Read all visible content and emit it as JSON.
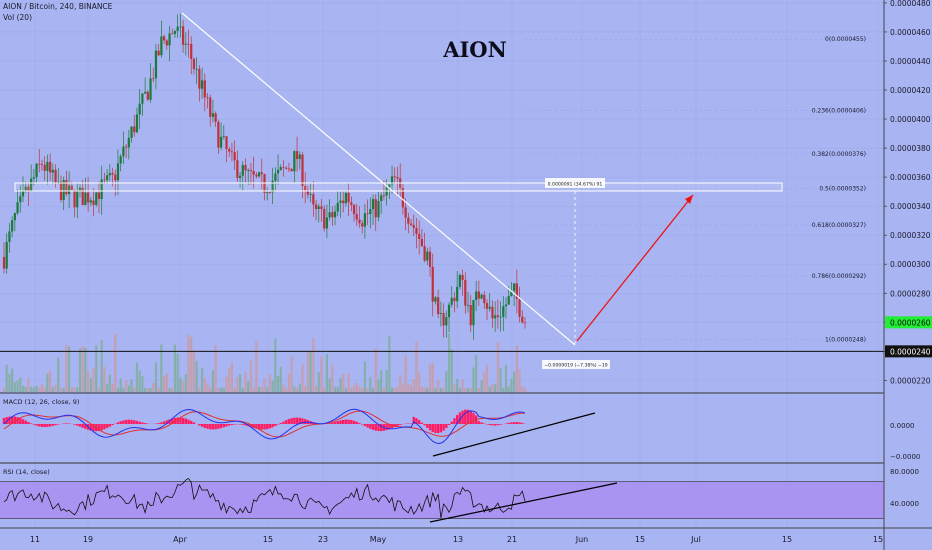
{
  "header": {
    "symbol_line": "AION / Bitcoin, 240, BINANCE",
    "volume_label": "Vol (20)"
  },
  "chart_data": {
    "type": "candlestick",
    "title": "AION",
    "price_axis": {
      "ticks": [
        "0.0000480",
        "0.0000460",
        "0.0000440",
        "0.0000420",
        "0.0000400",
        "0.0000380",
        "0.0000360",
        "0.0000340",
        "0.0000320",
        "0.0000300",
        "0.0000280",
        "0.0000260",
        "0.0000240",
        "0.0000220"
      ],
      "range": [
        2.12e-05,
        4.82e-05
      ],
      "current_price": "0.0000260",
      "marker_price": "0.0000240"
    },
    "time_axis": {
      "labels": [
        "11",
        "19",
        "Apr",
        "15",
        "23",
        "May",
        "13",
        "21",
        "Jun",
        "15",
        "Jul",
        "15"
      ]
    },
    "price_path": [
      {
        "i": 0,
        "p": 3.05e-05
      },
      {
        "i": 4,
        "p": 3.32e-05
      },
      {
        "i": 8,
        "p": 3.48e-05
      },
      {
        "i": 14,
        "p": 3.7e-05
      },
      {
        "i": 20,
        "p": 3.52e-05
      },
      {
        "i": 26,
        "p": 3.46e-05
      },
      {
        "i": 33,
        "p": 3.48e-05
      },
      {
        "i": 40,
        "p": 3.58e-05
      },
      {
        "i": 46,
        "p": 3.86e-05
      },
      {
        "i": 53,
        "p": 4.2e-05
      },
      {
        "i": 58,
        "p": 4.52e-05
      },
      {
        "i": 63,
        "p": 4.62e-05
      },
      {
        "i": 68,
        "p": 4.48e-05
      },
      {
        "i": 73,
        "p": 4.2e-05
      },
      {
        "i": 78,
        "p": 3.92e-05
      },
      {
        "i": 84,
        "p": 3.7e-05
      },
      {
        "i": 90,
        "p": 3.6e-05
      },
      {
        "i": 96,
        "p": 3.54e-05
      },
      {
        "i": 102,
        "p": 3.62e-05
      },
      {
        "i": 108,
        "p": 3.74e-05
      },
      {
        "i": 114,
        "p": 3.36e-05
      },
      {
        "i": 120,
        "p": 3.3e-05
      },
      {
        "i": 126,
        "p": 3.48e-05
      },
      {
        "i": 132,
        "p": 3.32e-05
      },
      {
        "i": 138,
        "p": 3.4e-05
      },
      {
        "i": 144,
        "p": 3.58e-05
      },
      {
        "i": 150,
        "p": 3.3e-05
      },
      {
        "i": 156,
        "p": 3.06e-05
      },
      {
        "i": 160,
        "p": 2.58e-05
      },
      {
        "i": 164,
        "p": 2.7e-05
      },
      {
        "i": 168,
        "p": 2.9e-05
      },
      {
        "i": 172,
        "p": 2.65e-05
      },
      {
        "i": 176,
        "p": 2.85e-05
      },
      {
        "i": 180,
        "p": 2.62e-05
      },
      {
        "i": 184,
        "p": 2.7e-05
      },
      {
        "i": 188,
        "p": 2.8e-05
      },
      {
        "i": 192,
        "p": 2.62e-05
      }
    ],
    "fibonacci_levels": [
      {
        "label": "0(0.0000455)",
        "value": 4.55e-05
      },
      {
        "label": "0.236(0.0000406)",
        "value": 4.06e-05
      },
      {
        "label": "0.382(0.0000376)",
        "value": 3.76e-05
      },
      {
        "label": "0.5(0.0000352)",
        "value": 3.52e-05
      },
      {
        "label": "0.618(0.0000327)",
        "value": 3.27e-05
      },
      {
        "label": "0.786(0.0000292)",
        "value": 2.92e-05
      },
      {
        "label": "1(0.0000248)",
        "value": 2.48e-05
      }
    ],
    "annotations": {
      "target_box_label": "0.0000091 (34.67%) 91",
      "drawdown_label": "−0.0000019 (−7.38%) −19"
    },
    "macd": {
      "label": "MACD (12, 26, close, 9)",
      "ticks": [
        "0.0000",
        "−0.0000"
      ]
    },
    "rsi": {
      "label": "RSI (14, close)",
      "ticks": [
        "80.0000",
        "40.0000"
      ],
      "band": [
        30,
        70
      ],
      "range": [
        20,
        90
      ]
    },
    "colors": {
      "background": "#a9b5f2",
      "bull": "#1a7a3a",
      "bear": "#c0303a",
      "macd_line": "#2233ee",
      "signal_line": "#e03030",
      "histogram": "#ff1c63",
      "rsi_line": "#111111",
      "rsi_band": "#a98af0",
      "current_price_tag": "#22ee33",
      "projection_arrow": "#ee1111"
    }
  }
}
